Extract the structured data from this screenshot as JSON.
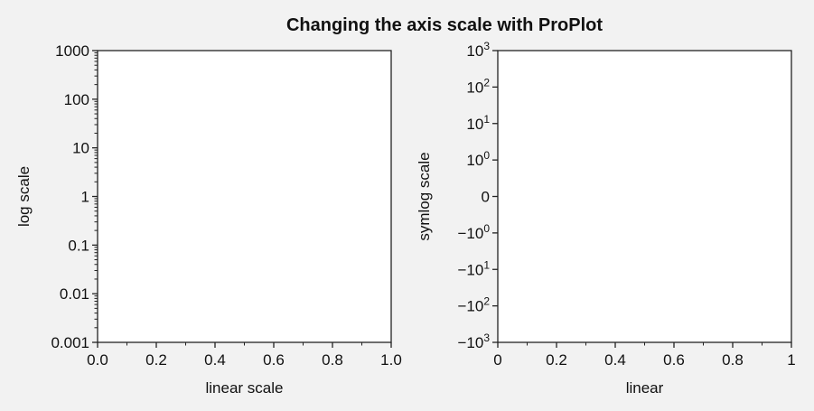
{
  "figure": {
    "title": "Changing the axis scale with ProPlot"
  },
  "chart_data": [
    {
      "type": "scatter",
      "series": [],
      "title": "",
      "xlabel": "linear scale",
      "ylabel": "log scale",
      "xscale": "linear",
      "yscale": "log",
      "xlim": [
        0,
        1
      ],
      "ylim": [
        0.001,
        1000
      ],
      "grid": true,
      "x_ticks": [
        0,
        0.2,
        0.4,
        0.6,
        0.8,
        1.0
      ],
      "x_tick_labels": [
        "0.0",
        "0.2",
        "0.4",
        "0.6",
        "0.8",
        "1.0"
      ],
      "y_ticks": [
        0.001,
        0.01,
        0.1,
        1,
        10,
        100,
        1000
      ],
      "y_tick_labels": [
        "0.001",
        "0.01",
        "0.1",
        "1",
        "10",
        "100",
        "1000"
      ]
    },
    {
      "type": "scatter",
      "series": [],
      "title": "",
      "xlabel": "linear",
      "ylabel": "symlog scale",
      "xscale": "linear",
      "yscale": "symlog",
      "linthresh": 1,
      "xlim": [
        0,
        1
      ],
      "ylim": [
        -1000,
        1000
      ],
      "grid": true,
      "x_ticks": [
        0,
        0.2,
        0.4,
        0.6,
        0.8,
        1
      ],
      "x_tick_labels": [
        "0",
        "0.2",
        "0.4",
        "0.6",
        "0.8",
        "1"
      ],
      "y_ticks": [
        -1000,
        -100,
        -10,
        -1,
        0,
        1,
        10,
        100,
        1000
      ],
      "y_tick_labels": [
        {
          "base": "−10",
          "exp": "3"
        },
        {
          "base": "−10",
          "exp": "2"
        },
        {
          "base": "−10",
          "exp": "1"
        },
        {
          "base": "−10",
          "exp": "0"
        },
        {
          "base": "0",
          "exp": ""
        },
        {
          "base": "10",
          "exp": "0"
        },
        {
          "base": "10",
          "exp": "1"
        },
        {
          "base": "10",
          "exp": "2"
        },
        {
          "base": "10",
          "exp": "3"
        }
      ]
    }
  ]
}
